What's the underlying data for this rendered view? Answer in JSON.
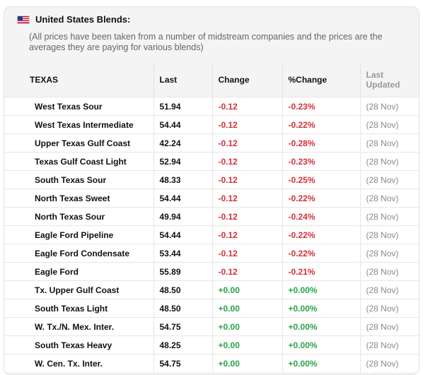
{
  "header": {
    "title": "United States Blends:",
    "note": "(All prices have been taken from a number of midstream companies and the prices are the averages they are paying for various blends)"
  },
  "table": {
    "columns": [
      "TEXAS",
      "Last",
      "Change",
      "%Change",
      "Last Updated"
    ],
    "rows": [
      {
        "name": "West Texas Sour",
        "last": "51.94",
        "change": "-0.12",
        "pct": "-0.23%",
        "updated": "(28 Nov)"
      },
      {
        "name": "West Texas Intermediate",
        "last": "54.44",
        "change": "-0.12",
        "pct": "-0.22%",
        "updated": "(28 Nov)"
      },
      {
        "name": "Upper Texas Gulf Coast",
        "last": "42.24",
        "change": "-0.12",
        "pct": "-0.28%",
        "updated": "(28 Nov)"
      },
      {
        "name": "Texas Gulf Coast Light",
        "last": "52.94",
        "change": "-0.12",
        "pct": "-0.23%",
        "updated": "(28 Nov)"
      },
      {
        "name": "South Texas Sour",
        "last": "48.33",
        "change": "-0.12",
        "pct": "-0.25%",
        "updated": "(28 Nov)"
      },
      {
        "name": "North Texas Sweet",
        "last": "54.44",
        "change": "-0.12",
        "pct": "-0.22%",
        "updated": "(28 Nov)"
      },
      {
        "name": "North Texas Sour",
        "last": "49.94",
        "change": "-0.12",
        "pct": "-0.24%",
        "updated": "(28 Nov)"
      },
      {
        "name": "Eagle Ford Pipeline",
        "last": "54.44",
        "change": "-0.12",
        "pct": "-0.22%",
        "updated": "(28 Nov)"
      },
      {
        "name": "Eagle Ford Condensate",
        "last": "53.44",
        "change": "-0.12",
        "pct": "-0.22%",
        "updated": "(28 Nov)"
      },
      {
        "name": "Eagle Ford",
        "last": "55.89",
        "change": "-0.12",
        "pct": "-0.21%",
        "updated": "(28 Nov)"
      },
      {
        "name": "Tx. Upper Gulf Coast",
        "last": "48.50",
        "change": "+0.00",
        "pct": "+0.00%",
        "updated": "(28 Nov)"
      },
      {
        "name": "South Texas Light",
        "last": "48.50",
        "change": "+0.00",
        "pct": "+0.00%",
        "updated": "(28 Nov)"
      },
      {
        "name": "W. Tx./N. Mex. Inter.",
        "last": "54.75",
        "change": "+0.00",
        "pct": "+0.00%",
        "updated": "(28 Nov)"
      },
      {
        "name": "South Texas Heavy",
        "last": "48.25",
        "change": "+0.00",
        "pct": "+0.00%",
        "updated": "(28 Nov)"
      },
      {
        "name": "W. Cen. Tx. Inter.",
        "last": "54.75",
        "change": "+0.00",
        "pct": "+0.00%",
        "updated": "(28 Nov)"
      }
    ]
  },
  "colors": {
    "negative": "#d5303b",
    "positive": "#27a54a",
    "muted": "#8a8a8a"
  },
  "icons": {
    "flag": "us-flag-icon"
  }
}
